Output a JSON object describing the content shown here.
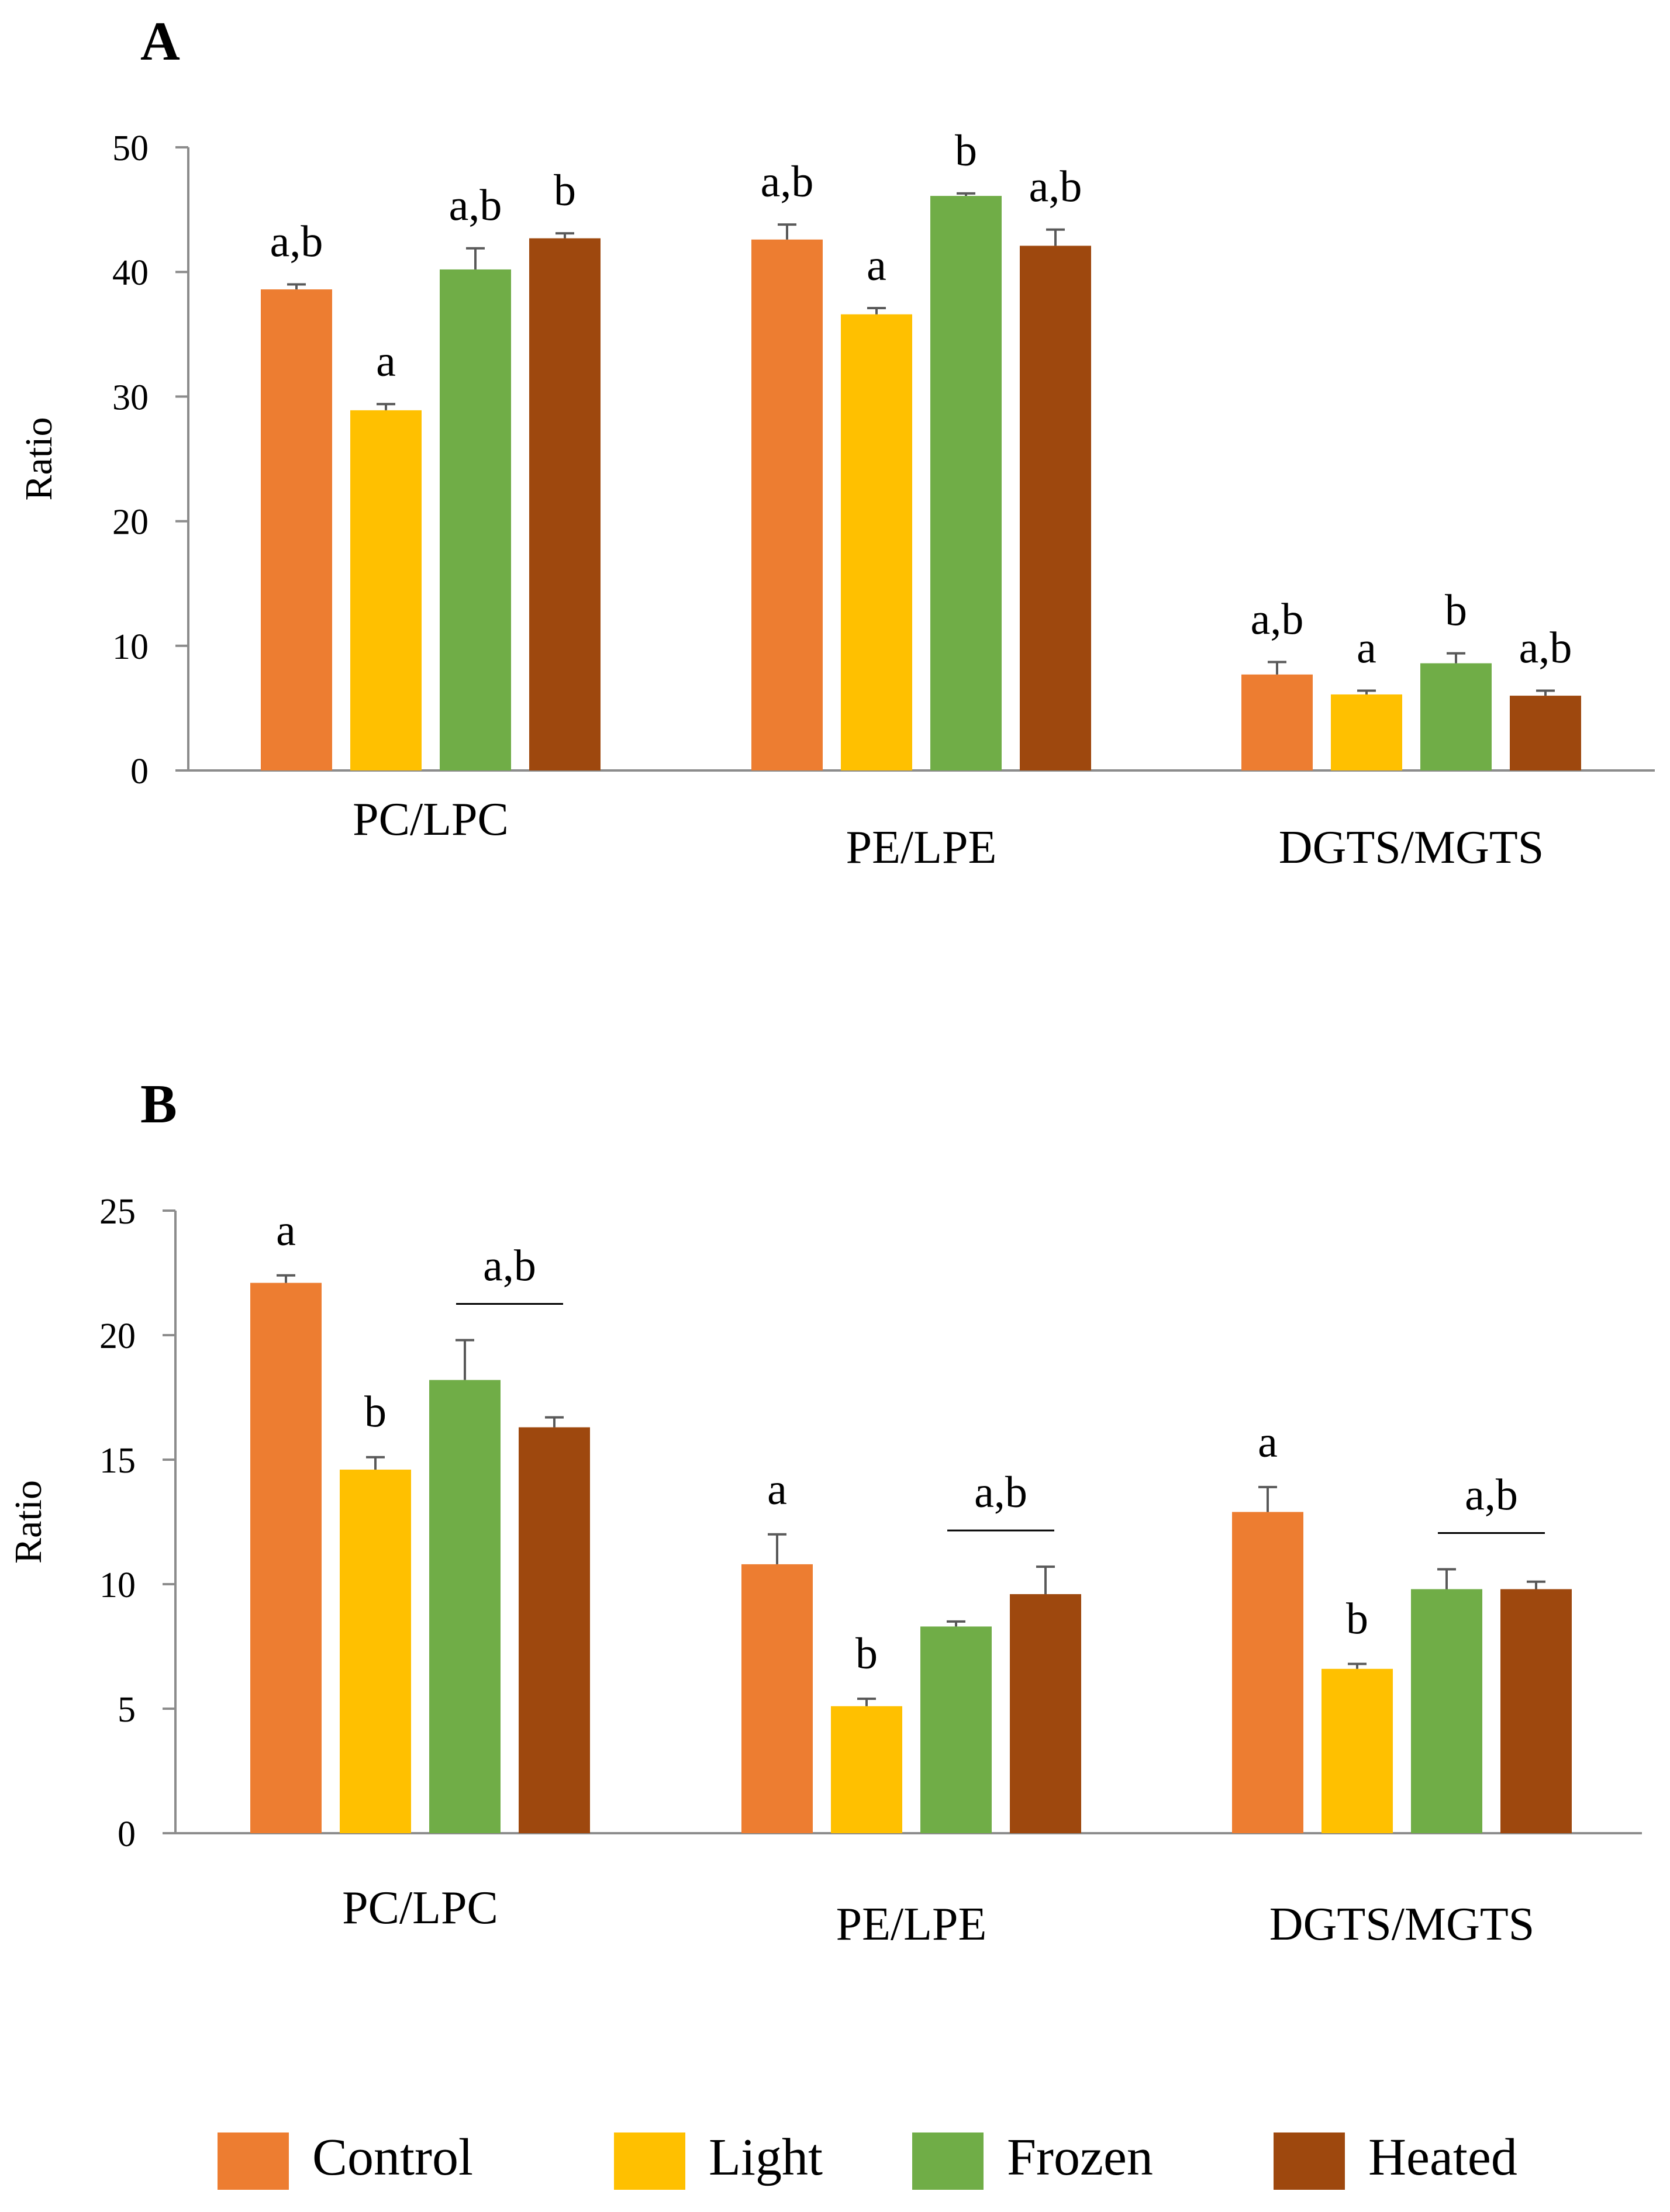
{
  "series_colors": {
    "Control": "#ED7D31",
    "Light": "#FFC000",
    "Frozen": "#70AD47",
    "Heated": "#9E480E"
  },
  "error_bar_color": "#595959",
  "axis_color": "#8C8C8C",
  "legend": {
    "items": [
      "Control",
      "Light",
      "Frozen",
      "Heated"
    ],
    "placement": "bottom"
  },
  "chart_data": [
    {
      "type": "bar",
      "panel_label": "A",
      "title": "",
      "xlabel": "",
      "ylabel": "Ratio",
      "ylim": [
        0,
        50
      ],
      "yticks": [
        0,
        10,
        20,
        30,
        40,
        50
      ],
      "grid": false,
      "categories": [
        "PC/LPC",
        "PE/LPE",
        "DGTS/MGTS"
      ],
      "series": [
        {
          "name": "Control",
          "values": [
            38.6,
            42.6,
            7.7
          ],
          "errors": [
            0.4,
            1.2,
            1.0
          ]
        },
        {
          "name": "Light",
          "values": [
            28.9,
            36.6,
            6.1
          ],
          "errors": [
            0.5,
            0.5,
            0.3
          ]
        },
        {
          "name": "Frozen",
          "values": [
            40.2,
            46.1,
            8.6
          ],
          "errors": [
            1.7,
            0.2,
            0.8
          ]
        },
        {
          "name": "Heated",
          "values": [
            42.7,
            42.1,
            6.0
          ],
          "errors": [
            0.4,
            1.3,
            0.4
          ]
        }
      ],
      "significance_labels": [
        [
          "a,b",
          "a",
          "a,b",
          "b"
        ],
        [
          "a,b",
          "a",
          "b",
          "a,b"
        ],
        [
          "a,b",
          "a",
          "b",
          "a,b"
        ]
      ],
      "group_labels": []
    },
    {
      "type": "bar",
      "panel_label": "B",
      "title": "",
      "xlabel": "",
      "ylabel": "Ratio",
      "ylim": [
        0,
        25
      ],
      "yticks": [
        0,
        5,
        10,
        15,
        20,
        25
      ],
      "grid": false,
      "categories": [
        "PC/LPC",
        "PE/LPE",
        "DGTS/MGTS"
      ],
      "series": [
        {
          "name": "Control",
          "values": [
            22.1,
            10.8,
            12.9
          ],
          "errors": [
            0.3,
            1.2,
            1.0
          ]
        },
        {
          "name": "Light",
          "values": [
            14.6,
            5.1,
            6.6
          ],
          "errors": [
            0.5,
            0.3,
            0.2
          ]
        },
        {
          "name": "Frozen",
          "values": [
            18.2,
            8.3,
            9.8
          ],
          "errors": [
            1.6,
            0.2,
            0.8
          ]
        },
        {
          "name": "Heated",
          "values": [
            16.3,
            9.6,
            9.8
          ],
          "errors": [
            0.4,
            1.1,
            0.3
          ]
        }
      ],
      "significance_labels": [
        [
          "a",
          "b",
          "",
          ""
        ],
        [
          "a",
          "b",
          "",
          ""
        ],
        [
          "a",
          "b",
          "",
          ""
        ]
      ],
      "group_labels": [
        {
          "label": "a,b",
          "over_series": [
            2,
            3
          ]
        },
        {
          "label": "a,b",
          "over_series": [
            2,
            3
          ]
        },
        {
          "label": "a,b",
          "over_series": [
            2,
            3
          ]
        }
      ]
    }
  ]
}
